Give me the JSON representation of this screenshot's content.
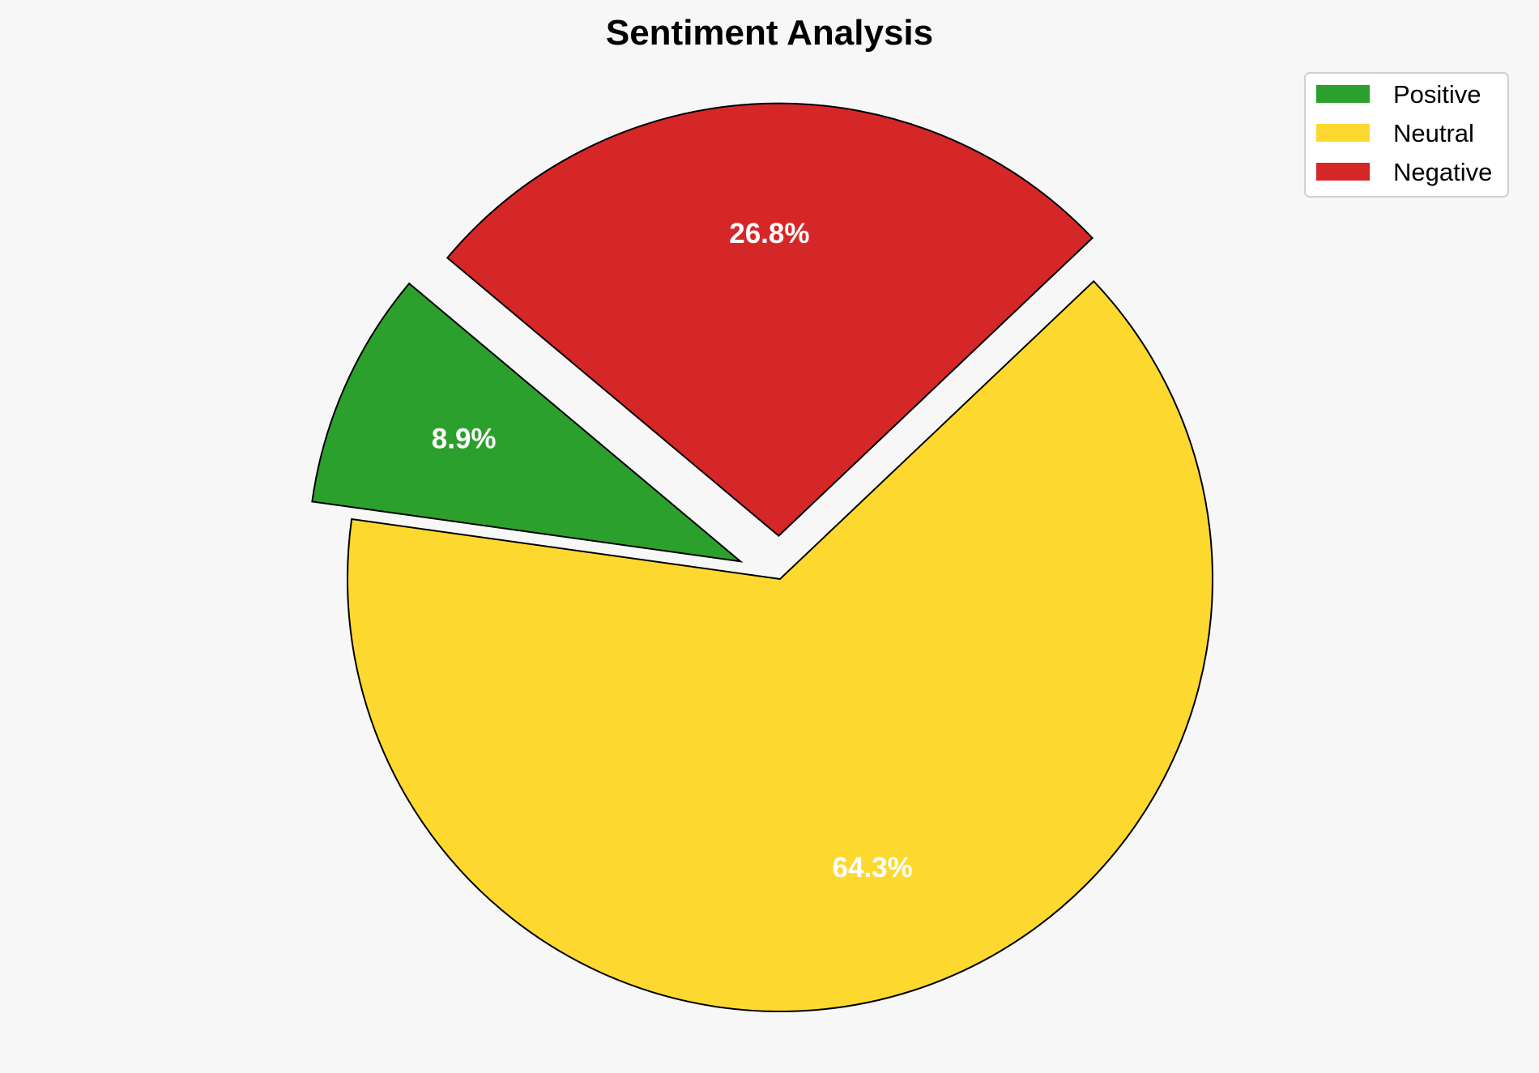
{
  "chart_data": {
    "type": "pie",
    "title": "Sentiment Analysis",
    "categories": [
      "Positive",
      "Neutral",
      "Negative"
    ],
    "values": [
      8.9,
      64.3,
      26.8
    ],
    "labels": [
      "8.9%",
      "64.3%",
      "26.8%"
    ],
    "colors": [
      "#2ca02c",
      "#fdd930",
      "#d62728"
    ],
    "explode": [
      0.1,
      0,
      0.1
    ],
    "start_angle": 140,
    "edge_color": "#000000",
    "legend_position": "top-right"
  }
}
